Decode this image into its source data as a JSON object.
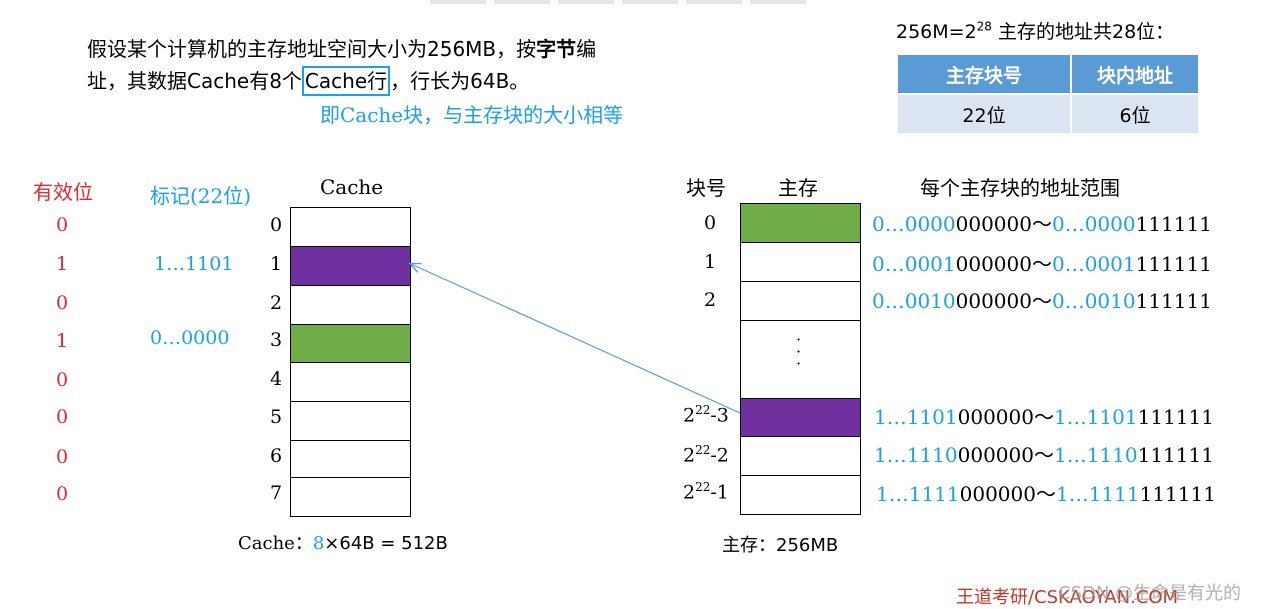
{
  "intro": {
    "line1_prefix": "假设某个计算机的主存地址空间大小为256MB，按",
    "line1_bold": "字节",
    "line1_suffix": "编",
    "line2_prefix": "址，其数据Cache有8个",
    "line2_boxed": "Cache行",
    "line2_suffix": "，行长为64B。"
  },
  "note": "即Cache块，与主存块的大小相等",
  "address_split": {
    "title_prefix": "256M=2",
    "title_exp": "28",
    "title_suffix": " 主存的地址共28位：",
    "headers": [
      "主存块号",
      "块内地址"
    ],
    "values": [
      "22位",
      "6位"
    ]
  },
  "cache": {
    "valid_header": "有效位",
    "tag_header": "标记(22位)",
    "cache_header": "Cache",
    "rows": [
      {
        "index": "0",
        "valid": "0",
        "tag": "",
        "fill": "none"
      },
      {
        "index": "1",
        "valid": "1",
        "tag": "1…1101",
        "fill": "purple"
      },
      {
        "index": "2",
        "valid": "0",
        "tag": "",
        "fill": "none"
      },
      {
        "index": "3",
        "valid": "1",
        "tag": "0…0000",
        "fill": "green"
      },
      {
        "index": "4",
        "valid": "0",
        "tag": "",
        "fill": "none"
      },
      {
        "index": "5",
        "valid": "0",
        "tag": "",
        "fill": "none"
      },
      {
        "index": "6",
        "valid": "0",
        "tag": "",
        "fill": "none"
      },
      {
        "index": "7",
        "valid": "0",
        "tag": "",
        "fill": "none"
      }
    ],
    "size_label": "Cache：",
    "size_count": "8",
    "size_rest": "×64B = 512B"
  },
  "memory": {
    "block_header": "块号",
    "memory_header": "主存",
    "range_header": "每个主存块的地址范围",
    "rows": [
      {
        "block": "0",
        "fill": "green",
        "start_blue": "0…0000",
        "start_black": "000000",
        "end_blue": "0…0000",
        "end_black": "111111"
      },
      {
        "block": "1",
        "fill": "none",
        "start_blue": "0…0001",
        "start_black": "000000",
        "end_blue": "0…0001",
        "end_black": "111111"
      },
      {
        "block": "2",
        "fill": "none",
        "start_blue": "0…0010",
        "start_black": "000000",
        "end_blue": "0…0010",
        "end_black": "111111"
      }
    ],
    "ellipsis": "·\n·\n·",
    "tail_rows": [
      {
        "block_base": "2",
        "block_exp": "22",
        "block_suffix": "-3",
        "fill": "purple",
        "start_blue": "1…1101",
        "start_black": "000000",
        "end_blue": "1…1101",
        "end_black": "111111"
      },
      {
        "block_base": "2",
        "block_exp": "22",
        "block_suffix": "-2",
        "fill": "none",
        "start_blue": "1…1110",
        "start_black": "000000",
        "end_blue": "1…1110",
        "end_black": "111111"
      },
      {
        "block_base": "2",
        "block_exp": "22",
        "block_suffix": "-1",
        "fill": "none",
        "start_blue": "1…1111",
        "start_black": "000000",
        "end_blue": "1…1111",
        "end_black": "111111"
      }
    ],
    "tilde": "～",
    "size_label": "主存：",
    "size_value": "256MB"
  },
  "colors": {
    "purple": "#7030a0",
    "green": "#70ad47",
    "blue_text": "#1aa1e6",
    "red_text": "#e8262b",
    "table_header": "#5b9bd5",
    "table_cell": "#dbe4f1",
    "arrow": "#5b9bd5"
  },
  "watermark": {
    "brand": "王道考研/CSKAOYAN.COM",
    "overlay": "CSDN @生命是有光的"
  }
}
